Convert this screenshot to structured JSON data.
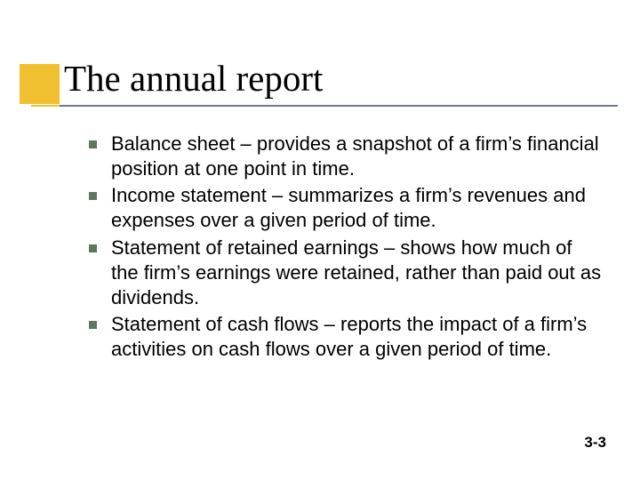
{
  "slide": {
    "title": "The annual report",
    "accent_block_color": "#f0c030",
    "underline_color": "#6b7a8f",
    "bullet_color": "#5a7a5a",
    "title_fontsize": 41,
    "body_fontsize": 22,
    "bullets": [
      "Balance sheet – provides a snapshot of a firm’s financial position at one point in time.",
      "Income statement – summarizes a firm’s revenues and expenses over a given period of time.",
      "Statement of retained earnings – shows how much of the firm’s earnings were retained, rather than paid out as dividends.",
      "Statement of cash flows – reports the impact of a firm’s activities on cash flows over a given period of time."
    ],
    "page_number": "3-3"
  }
}
